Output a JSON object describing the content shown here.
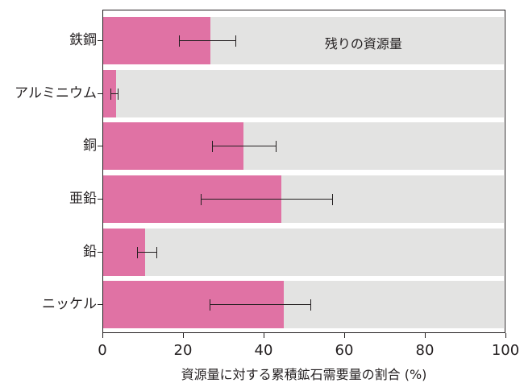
{
  "chart_data": {
    "type": "bar",
    "orientation": "horizontal",
    "stacked_background": true,
    "categories": [
      "鉄鋼",
      "アルミニウム",
      "銅",
      "亜鉛",
      "鉛",
      "ニッケル"
    ],
    "series": [
      {
        "name": "累積鉱石需要量の割合",
        "color": "#e072a4",
        "values": [
          26.8,
          3.2,
          35.0,
          44.4,
          10.4,
          45.0
        ],
        "error_low": [
          19.2,
          2.0,
          27.4,
          24.6,
          8.6,
          26.8
        ],
        "error_high": [
          33.0,
          3.6,
          43.0,
          57.2,
          13.2,
          51.8
        ]
      },
      {
        "name": "残りの資源量",
        "color": "#e3e3e2",
        "values": [
          73.2,
          96.8,
          65.0,
          55.6,
          89.6,
          55.0
        ]
      }
    ],
    "annotations": [
      {
        "text": "残りの資源量",
        "category": "鉄鋼",
        "x": 65
      }
    ],
    "title": "",
    "xlabel": "資源量に対する累積鉱石需要量の割合 (%)",
    "ylabel": "",
    "xlim": [
      0,
      100
    ],
    "xticks": [
      0,
      20,
      40,
      60,
      80,
      100
    ],
    "grid": false,
    "legend": null
  },
  "labels": {
    "categories": [
      "鉄鋼",
      "アルミニウム",
      "銅",
      "亜鉛",
      "鉛",
      "ニッケル"
    ],
    "xticks": [
      "0",
      "20",
      "40",
      "60",
      "80",
      "100"
    ],
    "xtitle": "資源量に対する累積鉱石需要量の割合 (%)",
    "annotation": "残りの資源量"
  }
}
